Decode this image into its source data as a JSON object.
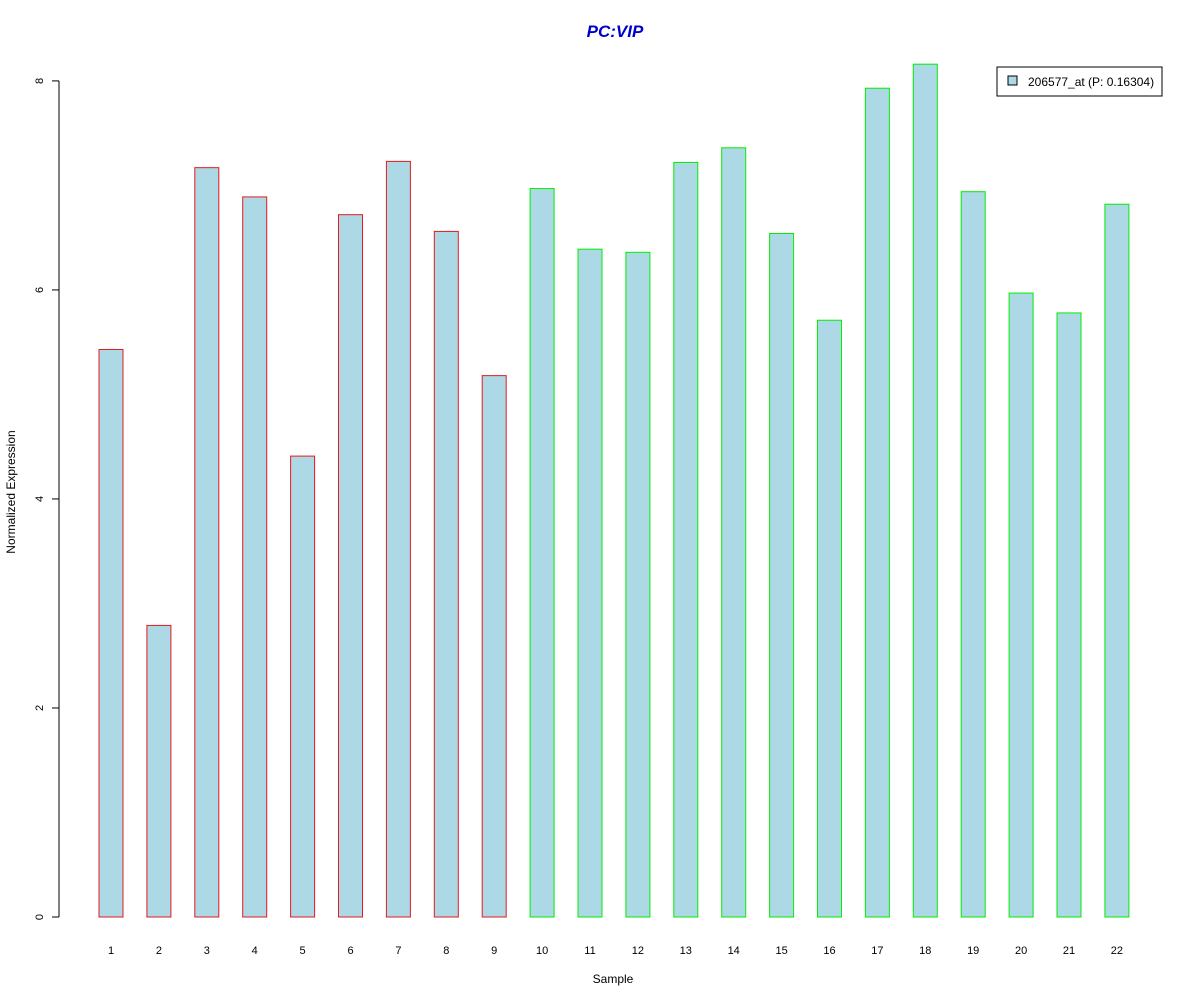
{
  "chart_data": {
    "type": "bar",
    "title": "PC:VIP",
    "xlabel": "Sample",
    "ylabel": "Normalized Expression",
    "categories": [
      "1",
      "2",
      "3",
      "4",
      "5",
      "6",
      "7",
      "8",
      "9",
      "10",
      "11",
      "12",
      "13",
      "14",
      "15",
      "16",
      "17",
      "18",
      "19",
      "20",
      "21",
      "22"
    ],
    "series": [
      {
        "name": "206577_at (P: 0.16304)",
        "values": [
          5.43,
          2.79,
          7.17,
          6.89,
          4.41,
          6.72,
          7.23,
          6.56,
          5.18,
          6.97,
          6.39,
          6.36,
          7.22,
          7.36,
          6.54,
          5.71,
          7.93,
          8.16,
          6.94,
          5.97,
          5.78,
          6.82
        ]
      }
    ],
    "groups": [
      {
        "border_color": "#e41a1c",
        "samples": [
          "1",
          "2",
          "3",
          "4",
          "5",
          "6",
          "7",
          "8",
          "9"
        ]
      },
      {
        "border_color": "#00ee00",
        "samples": [
          "10",
          "11",
          "12",
          "13",
          "14",
          "15",
          "16",
          "17",
          "18",
          "19",
          "20",
          "21",
          "22"
        ]
      }
    ],
    "yticks": [
      0,
      2,
      4,
      6,
      8
    ],
    "ylim": [
      0,
      8.2
    ],
    "grid": false,
    "legend_position": "top-right",
    "colors": {
      "bar_fill": "#add8e6",
      "title": "#0000cd",
      "axis": "#000000"
    }
  }
}
